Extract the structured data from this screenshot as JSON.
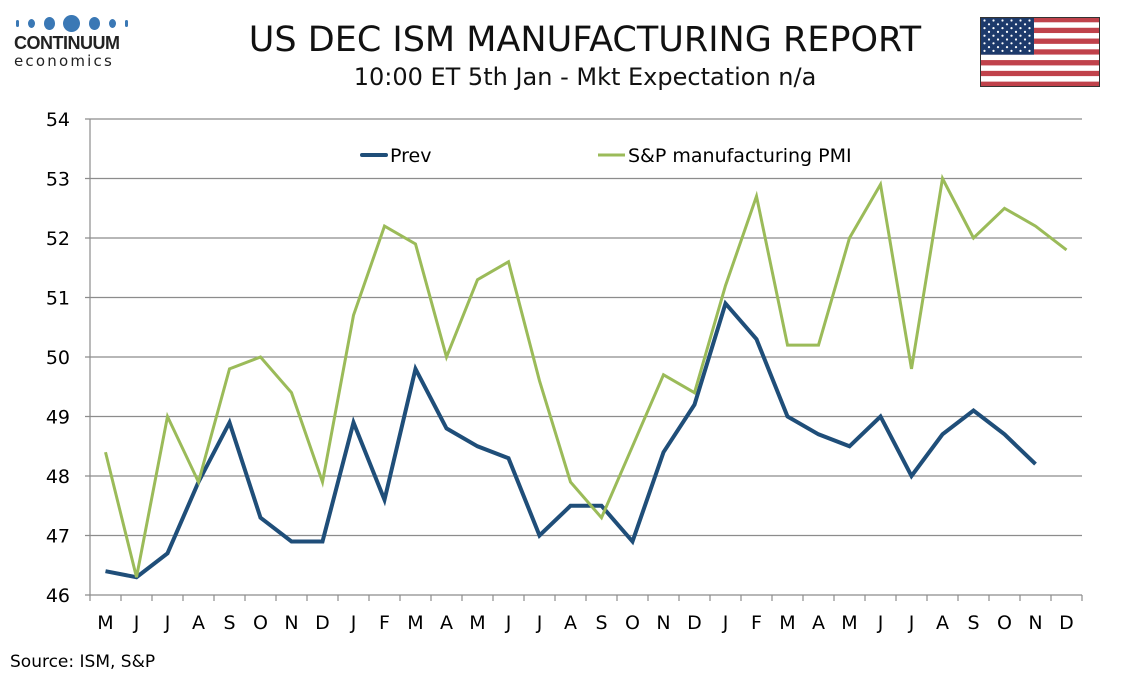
{
  "header": {
    "logo_brand": "CONTINUUM",
    "logo_sub": "economics",
    "title": "US DEC ISM MANUFACTURING REPORT",
    "subtitle": "10:00 ET 5th Jan - Mkt Expectation n/a",
    "flag_icon": "us-flag-icon"
  },
  "footer": {
    "source": "Source: ISM, S&P"
  },
  "colors": {
    "prev": "#1f4e79",
    "sp": "#9bbb59",
    "grid": "#8c8c8c",
    "logo": "#3a78b5"
  },
  "chart_data": {
    "type": "line",
    "title": "US DEC ISM MANUFACTURING REPORT",
    "subtitle": "10:00 ET 5th Jan - Mkt Expectation n/a",
    "xlabel": "",
    "ylabel": "",
    "ylim": [
      46,
      54
    ],
    "yticks": [
      46,
      47,
      48,
      49,
      50,
      51,
      52,
      53,
      54
    ],
    "grid": true,
    "legend_position": "top-center",
    "categories": [
      "M",
      "J",
      "J",
      "A",
      "S",
      "O",
      "N",
      "D",
      "J",
      "F",
      "M",
      "A",
      "M",
      "J",
      "J",
      "A",
      "S",
      "O",
      "N",
      "D",
      "J",
      "F",
      "M",
      "A",
      "M",
      "J",
      "J",
      "A",
      "S",
      "O",
      "N",
      "D"
    ],
    "series": [
      {
        "name": "Prev",
        "color": "#1f4e79",
        "values": [
          46.4,
          46.3,
          46.7,
          47.9,
          48.9,
          47.3,
          46.9,
          46.9,
          48.9,
          47.6,
          49.8,
          48.8,
          48.5,
          48.3,
          47.0,
          47.5,
          47.5,
          46.9,
          48.4,
          49.2,
          50.9,
          50.3,
          49.0,
          48.7,
          48.5,
          49.0,
          48.0,
          48.7,
          49.1,
          48.7,
          48.2,
          null
        ]
      },
      {
        "name": "S&P manufacturing PMI",
        "color": "#9bbb59",
        "values": [
          48.4,
          46.3,
          49.0,
          47.9,
          49.8,
          50.0,
          49.4,
          47.9,
          50.7,
          52.2,
          51.9,
          50.0,
          51.3,
          51.6,
          49.6,
          47.9,
          47.3,
          48.5,
          49.7,
          49.4,
          51.2,
          52.7,
          50.2,
          50.2,
          52.0,
          52.9,
          49.8,
          53.0,
          52.0,
          52.5,
          52.2,
          51.8
        ]
      }
    ]
  }
}
